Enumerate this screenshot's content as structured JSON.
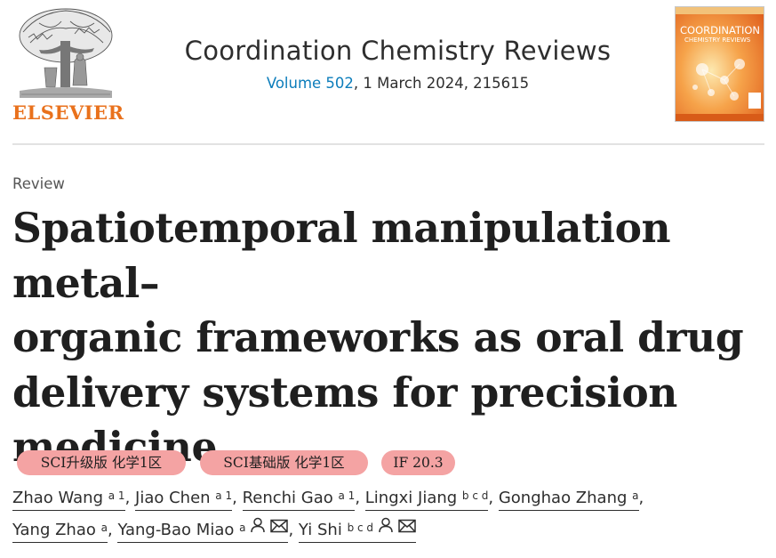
{
  "publisher": {
    "name": "ELSEVIER",
    "color": "#e9711c"
  },
  "journal": {
    "title": "Coordination Chemistry Reviews",
    "volume_link": "Volume 502",
    "issue_suffix": ", 1 March 2024, 215615",
    "link_color": "#0c7dbb"
  },
  "cover": {
    "heading_line1": "COORDINATION",
    "heading_line2": "CHEMISTRY REVIEWS"
  },
  "article": {
    "type": "Review",
    "title_lines": [
      "Spatiotemporal manipulation metal–",
      "organic frameworks as oral drug",
      "delivery systems for precision",
      "medicine"
    ]
  },
  "badges": [
    {
      "label": "SCI升级版 化学1区"
    },
    {
      "label": "SCI基础版 化学1区"
    },
    {
      "label": "IF 20.3"
    }
  ],
  "badge_color": "#f4a3a3",
  "authors": [
    {
      "name": "Zhao Wang",
      "affil": "a 1",
      "icons": []
    },
    {
      "name": "Jiao Chen",
      "affil": "a 1",
      "icons": []
    },
    {
      "name": "Renchi Gao",
      "affil": "a 1",
      "icons": []
    },
    {
      "name": "Lingxi Jiang",
      "affil": "b c d",
      "icons": []
    },
    {
      "name": "Gonghao Zhang",
      "affil": "a",
      "icons": []
    },
    {
      "name": "Yang Zhao",
      "affil": "a",
      "icons": []
    },
    {
      "name": "Yang-Bao Miao",
      "affil": "a",
      "icons": [
        "person-icon",
        "envelope-icon"
      ]
    },
    {
      "name": "Yi Shi",
      "affil": "b c d",
      "icons": [
        "person-icon",
        "envelope-icon"
      ]
    }
  ]
}
